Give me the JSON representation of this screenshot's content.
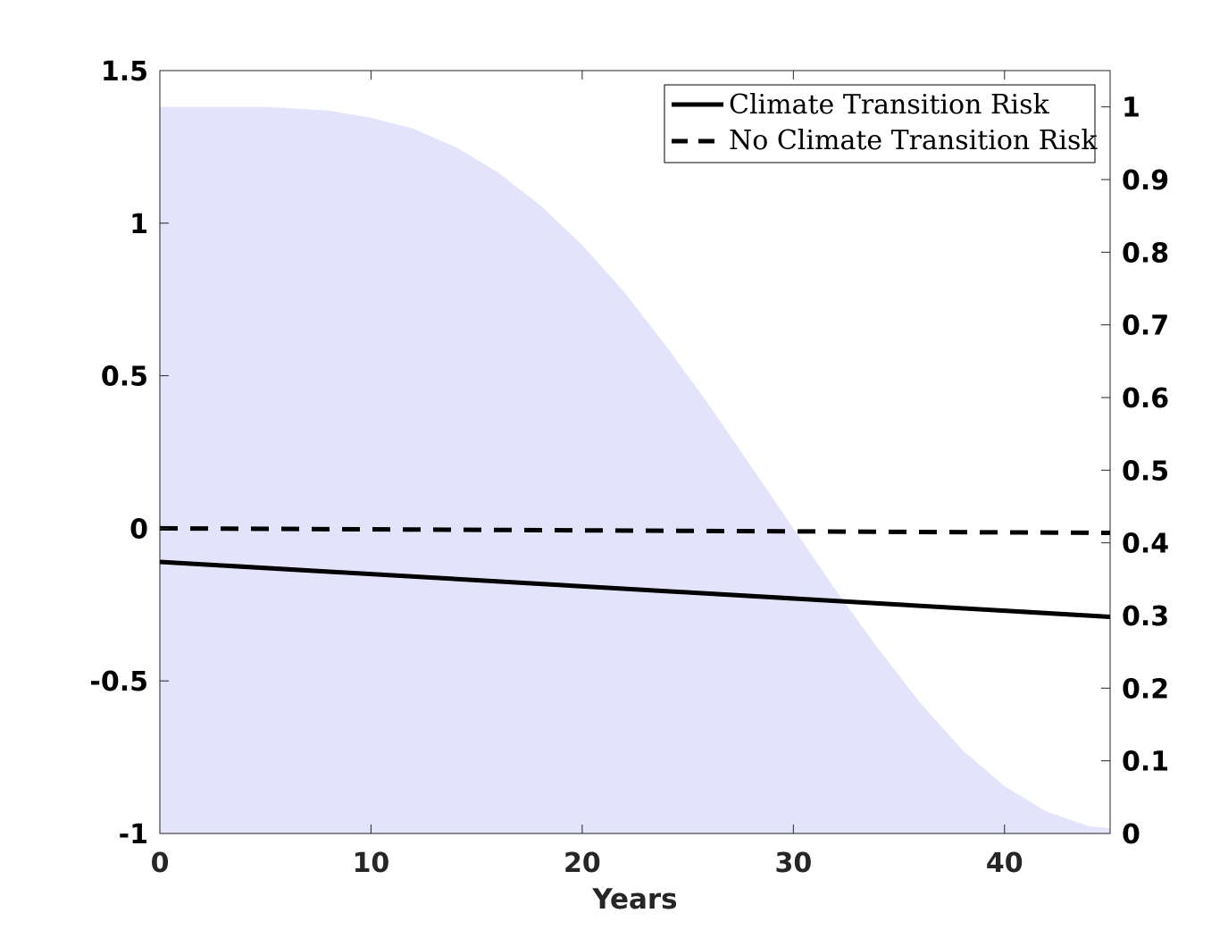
{
  "chart_data": {
    "type": "line",
    "xlabel": "Years",
    "ylabel": "",
    "ylabel_right": "",
    "xlim": [
      0,
      45
    ],
    "ylim": [
      -1,
      1.5
    ],
    "ylim_right": [
      0,
      1.05
    ],
    "x_ticks": [
      "0",
      "10",
      "20",
      "30",
      "40"
    ],
    "y_ticks_left": [
      "-1",
      "-0.5",
      "0",
      "0.5",
      "1",
      "1.5"
    ],
    "y_ticks_right": [
      "0",
      "0.1",
      "0.2",
      "0.3",
      "0.4",
      "0.5",
      "0.6",
      "0.7",
      "0.8",
      "0.9",
      "1"
    ],
    "grid": false,
    "legend_position": "top-right",
    "series": [
      {
        "name": "Climate Transition Risk",
        "style": "solid",
        "color": "#000000",
        "axis": "left",
        "x": [
          0,
          45
        ],
        "values": [
          -0.11,
          -0.29
        ]
      },
      {
        "name": "No Climate Transition Risk",
        "style": "dashed",
        "color": "#000000",
        "axis": "left",
        "x": [
          0,
          45
        ],
        "values": [
          0.0,
          -0.015
        ]
      }
    ],
    "area": {
      "axis": "right",
      "color": "#e3e3fc",
      "x": [
        0,
        5,
        8,
        10,
        12,
        14,
        16,
        18,
        20,
        22,
        24,
        26,
        28,
        30,
        32,
        34,
        36,
        38,
        40,
        42,
        44,
        45
      ],
      "values": [
        1.0,
        1.0,
        0.995,
        0.985,
        0.97,
        0.945,
        0.91,
        0.865,
        0.81,
        0.745,
        0.67,
        0.59,
        0.505,
        0.42,
        0.335,
        0.255,
        0.18,
        0.115,
        0.065,
        0.03,
        0.01,
        0.007
      ]
    }
  }
}
